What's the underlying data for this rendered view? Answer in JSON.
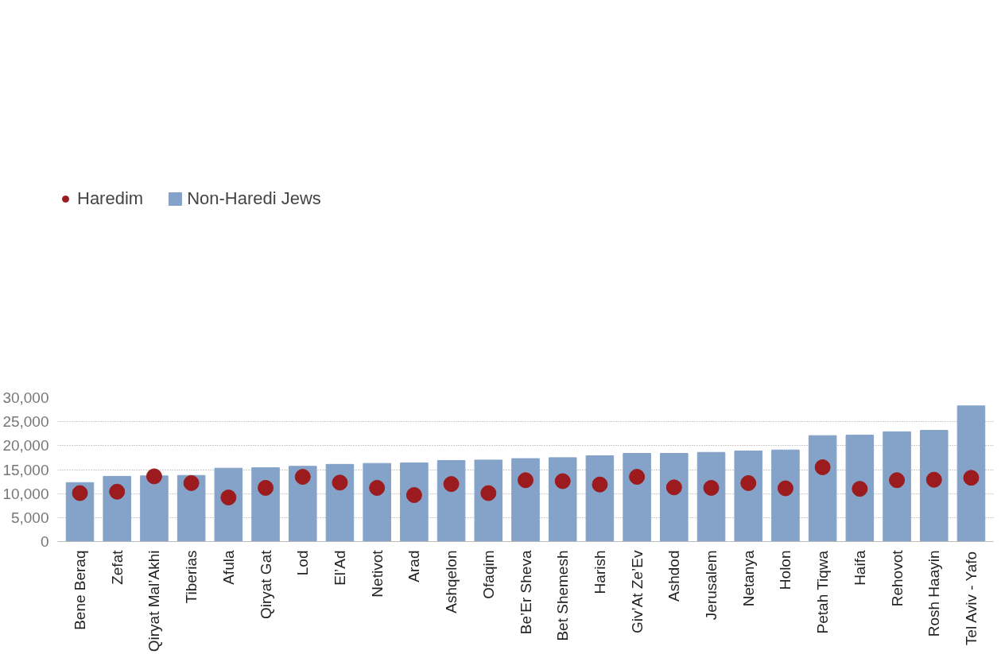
{
  "chart_data": {
    "type": "bar",
    "categories": [
      "Bene Beraq",
      "Zefat",
      "Qiryat Mal’Akhi",
      "Tiberias",
      "Afula",
      "Qiryat Gat",
      "Lod",
      "El’Ad",
      "Netivot",
      "Arad",
      "Ashqelon",
      "Ofaqim",
      "Be’Er Sheva",
      "Bet Shemesh",
      "Harish",
      "Giv’At Ze’Ev",
      "Ashdod",
      "Jerusalem",
      "Netanya",
      "Holon",
      "Petah Tiqwa",
      "Haifa",
      "Rehovot",
      "Rosh Haayin",
      "Tel Aviv - Yafo"
    ],
    "series": [
      {
        "name": "Haredim",
        "type": "scatter",
        "color": "#9b1b1e",
        "values": [
          10100,
          10400,
          13600,
          12200,
          9200,
          11200,
          13500,
          12300,
          11200,
          9700,
          12000,
          10100,
          12800,
          12600,
          11900,
          13500,
          11300,
          11200,
          12200,
          11100,
          15500,
          11000,
          12800,
          12900,
          13300
        ]
      },
      {
        "name": "Non-Haredi Jews",
        "color": "#85a3c8",
        "values": [
          12300,
          13600,
          13700,
          13800,
          15300,
          15400,
          15700,
          16100,
          16300,
          16400,
          16900,
          17000,
          17300,
          17500,
          17900,
          18400,
          18400,
          18600,
          18900,
          19100,
          22100,
          22200,
          22900,
          23200,
          28300
        ]
      }
    ],
    "ylim": [
      0,
      30000
    ],
    "yticks": [
      {
        "value": 0,
        "label": "0"
      },
      {
        "value": 5000,
        "label": "5,000"
      },
      {
        "value": 10000,
        "label": "10,000"
      },
      {
        "value": 15000,
        "label": "15,000"
      },
      {
        "value": 20000,
        "label": "20,000"
      },
      {
        "value": 25000,
        "label": "25,000"
      },
      {
        "value": 30000,
        "label": "30,000"
      }
    ],
    "grid": "y",
    "legend": "top left",
    "marker": "circle"
  }
}
